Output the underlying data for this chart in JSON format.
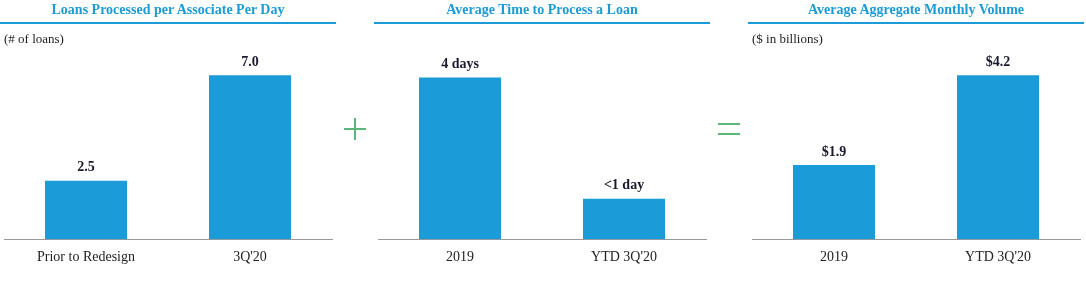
{
  "chart_data": [
    {
      "type": "bar",
      "title": "Loans Processed per Associate Per Day",
      "subtitle": "(# of loans)",
      "categories": [
        "Prior to Redesign",
        "3Q'20"
      ],
      "values": [
        2.5,
        7.0
      ],
      "value_labels": [
        "2.5",
        "7.0"
      ],
      "color": "#1b9bd7",
      "tick_labels": "x",
      "grid": false,
      "legend": false
    },
    {
      "type": "bar",
      "title": "Average Time to Process a Loan",
      "categories": [
        "2019",
        "YTD 3Q'20"
      ],
      "values": [
        4,
        1
      ],
      "value_labels": [
        "4 days",
        "<1 day"
      ],
      "color": "#1b9bd7",
      "tick_labels": "x",
      "grid": false,
      "legend": false
    },
    {
      "type": "bar",
      "title": "Average Aggregate Monthly Volume",
      "subtitle": "($ in billions)",
      "categories": [
        "2019",
        "YTD 3Q'20"
      ],
      "values": [
        1.9,
        4.2
      ],
      "value_labels": [
        "$1.9",
        "$4.2"
      ],
      "color": "#1b9bd7",
      "tick_labels": "x",
      "grid": false,
      "legend": false
    }
  ]
}
